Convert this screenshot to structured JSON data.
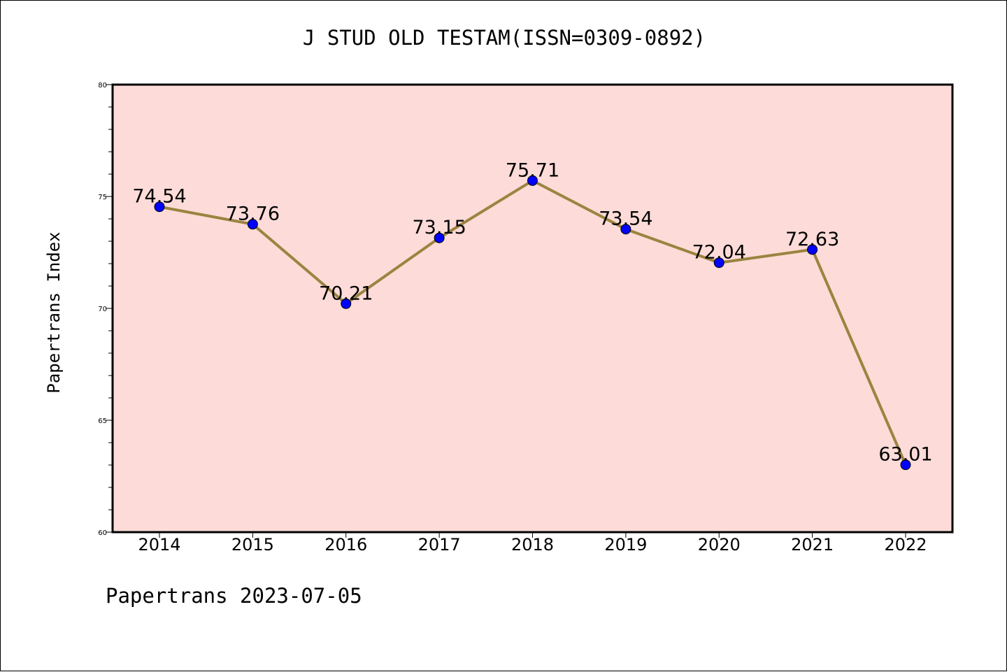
{
  "chart_data": {
    "type": "line",
    "title": "J STUD OLD TESTAM(ISSN=0309-0892)",
    "xlabel": "",
    "ylabel": "Papertrans Index",
    "x": [
      "2014",
      "2015",
      "2016",
      "2017",
      "2018",
      "2019",
      "2020",
      "2021",
      "2022"
    ],
    "series": [
      {
        "values": [
          74.54,
          73.76,
          70.21,
          73.15,
          75.71,
          73.54,
          72.04,
          72.63,
          63.01
        ],
        "labels": [
          "74.54",
          "73.76",
          "70.21",
          "73.15",
          "75.71",
          "73.54",
          "72.04",
          "72.63",
          "63.01"
        ],
        "line_color": "#9a8440",
        "marker_color": "#0000ff"
      }
    ],
    "ylim": [
      60,
      80
    ],
    "yticks": [
      "60",
      "65",
      "70",
      "75",
      "80"
    ],
    "grid": false,
    "plot_background": "#fddbd8"
  },
  "footer": "Papertrans 2023-07-05"
}
